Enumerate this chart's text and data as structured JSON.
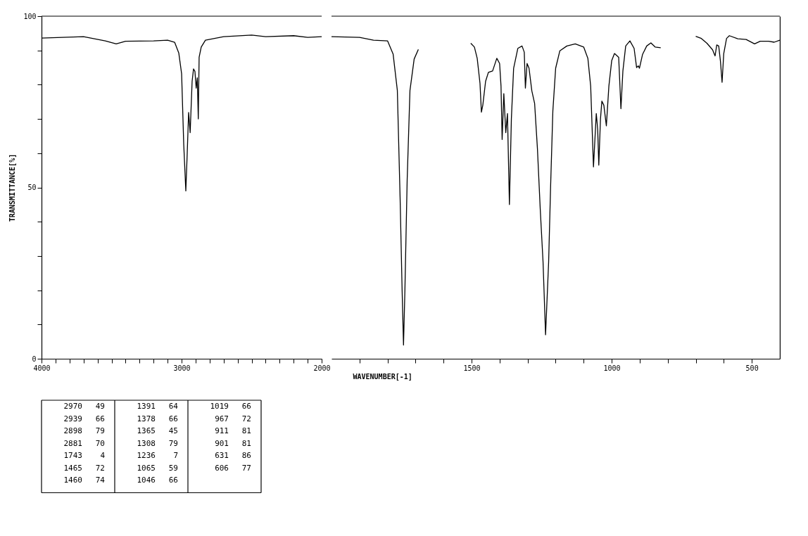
{
  "chart_data": [
    {
      "type": "line",
      "ylabel": "TRANSMITTANCE[%]",
      "xlim": [
        4000,
        2000
      ],
      "xticks": [
        4000,
        {
          "value": 3900,
          "label": null
        },
        {
          "value": 3800,
          "label": null
        },
        {
          "value": 3700,
          "label": null
        },
        {
          "value": 3600,
          "label": null
        },
        {
          "value": 3500,
          "label": null
        },
        {
          "value": 3400,
          "label": null
        },
        {
          "value": 3300,
          "label": null
        },
        {
          "value": 3200,
          "label": null
        },
        {
          "value": 3100,
          "label": null
        },
        3000,
        {
          "value": 2900,
          "label": null
        },
        {
          "value": 2800,
          "label": null
        },
        {
          "value": 2700,
          "label": null
        },
        {
          "value": 2600,
          "label": null
        },
        {
          "value": 2500,
          "label": null
        },
        {
          "value": 2400,
          "label": null
        },
        {
          "value": 2300,
          "label": null
        },
        {
          "value": 2200,
          "label": null
        },
        {
          "value": 2100,
          "label": null
        },
        2000
      ],
      "ylim": [
        0,
        100
      ],
      "yticks": [
        0,
        {
          "value": 10,
          "label": null
        },
        {
          "value": 20,
          "label": null
        },
        {
          "value": 30,
          "label": null
        },
        {
          "value": 40,
          "label": null
        },
        50,
        {
          "value": 60,
          "label": null
        },
        {
          "value": 70,
          "label": null
        },
        {
          "value": 80,
          "label": null
        },
        {
          "value": 90,
          "label": null
        },
        100
      ],
      "grid": false,
      "marker": "none",
      "line_style": "solid",
      "series": [
        {
          "color": "#000000",
          "x": [
            4000,
            3700,
            3545,
            3467,
            3400,
            3200,
            3100,
            3050,
            3020,
            3000,
            2985,
            2970,
            2960,
            2950,
            2939,
            2925,
            2915,
            2905,
            2896,
            2888,
            2881,
            2875,
            2860,
            2830,
            2700,
            2500,
            2400,
            2200,
            2100,
            2000
          ],
          "values": [
            93.6,
            94,
            92.8,
            91.9,
            92.7,
            92.8,
            93,
            92.4,
            89.2,
            83.2,
            62.7,
            49,
            60,
            71.9,
            66,
            81,
            84.6,
            83.9,
            79,
            82,
            70,
            88,
            91,
            93,
            94,
            94.5,
            94,
            94.3,
            93.8,
            94
          ]
        }
      ],
      "annotations": [
        "2970 49",
        "2939 66",
        "2898 79",
        "2881 70",
        "1743 4",
        "1465 72",
        "1460 74",
        "1391 64",
        "1378 66",
        "1365 45",
        "1308 79",
        "1236 7",
        "1065 59",
        "1046 66",
        "1019 66",
        "967 72",
        "911 81",
        "901 81",
        "631 86",
        "606 77"
      ]
    },
    {
      "type": "line",
      "xlabel": "WAVENUMBER[-1]",
      "xlim": [
        2000,
        400
      ],
      "xticks": [
        {
          "value": 1900,
          "label": null
        },
        {
          "value": 1800,
          "label": null
        },
        {
          "value": 1700,
          "label": null
        },
        {
          "value": 1600,
          "label": null
        },
        1500,
        {
          "value": 1400,
          "label": null
        },
        {
          "value": 1300,
          "label": null
        },
        {
          "value": 1200,
          "label": null
        },
        {
          "value": 1100,
          "label": null
        },
        1000,
        {
          "value": 900,
          "label": null
        },
        {
          "value": 800,
          "label": null
        },
        {
          "value": 700,
          "label": null
        },
        {
          "value": 600,
          "label": null
        },
        500
      ],
      "ylim": [
        0,
        100
      ],
      "tick_labels": "x",
      "grid": false,
      "marker": "none",
      "line_style": "solid",
      "series": [
        {
          "color": "#000000",
          "x": [
            2000,
            1900,
            1850,
            1800,
            1780,
            1765,
            1755,
            1748,
            1743,
            1738,
            1730,
            1720,
            1705,
            1690,
            1600,
            1503,
            1490,
            1480,
            1470,
            1465,
            1460,
            1450,
            1440,
            1425,
            1410,
            1400,
            1395,
            1391,
            1385,
            1378,
            1372,
            1365,
            1358,
            1350,
            1335,
            1320,
            1312,
            1308,
            1302,
            1295,
            1285,
            1275,
            1265,
            1255,
            1245,
            1236,
            1225,
            1218,
            1210,
            1200,
            1185,
            1160,
            1130,
            1100,
            1085,
            1075,
            1065,
            1055,
            1050,
            1046,
            1040,
            1035,
            1028,
            1019,
            1010,
            1000,
            990,
            975,
            967,
            960,
            950,
            935,
            920,
            911,
            905,
            901,
            890,
            875,
            860,
            845,
            825,
            760,
            700,
            680,
            660,
            640,
            631,
            625,
            618,
            612,
            606,
            600,
            590,
            580,
            550,
            520,
            490,
            470,
            440,
            420,
            400
          ],
          "values": [
            94,
            93.8,
            93,
            92.8,
            88.9,
            78.3,
            46.4,
            20,
            4,
            20,
            52,
            78.3,
            87.5,
            90.3,
            null,
            92.1,
            91,
            87.7,
            80.4,
            72,
            74,
            81,
            83.6,
            84,
            87.7,
            86.2,
            79.6,
            64,
            77.4,
            66,
            71.6,
            45,
            70.1,
            84.8,
            90.6,
            91.3,
            89.5,
            79,
            86.2,
            84.8,
            78.2,
            74.5,
            61.3,
            43.7,
            28.3,
            7,
            28.3,
            50.3,
            72.3,
            84.8,
            89.9,
            91.3,
            91.9,
            91,
            87.7,
            79.6,
            56,
            71.6,
            67,
            56.5,
            70,
            75.2,
            74,
            68,
            79.6,
            87,
            89.1,
            88,
            73,
            84,
            91.3,
            92.8,
            90.6,
            85,
            85.5,
            84.8,
            88.8,
            91.3,
            92.2,
            91,
            90.8,
            null,
            94.1,
            93.5,
            92.1,
            90.2,
            88.4,
            91.6,
            91.3,
            87,
            80.7,
            89.1,
            93.5,
            94.3,
            93.4,
            93.2,
            91.9,
            92.7,
            92.7,
            92.4,
            93
          ]
        }
      ]
    }
  ]
}
